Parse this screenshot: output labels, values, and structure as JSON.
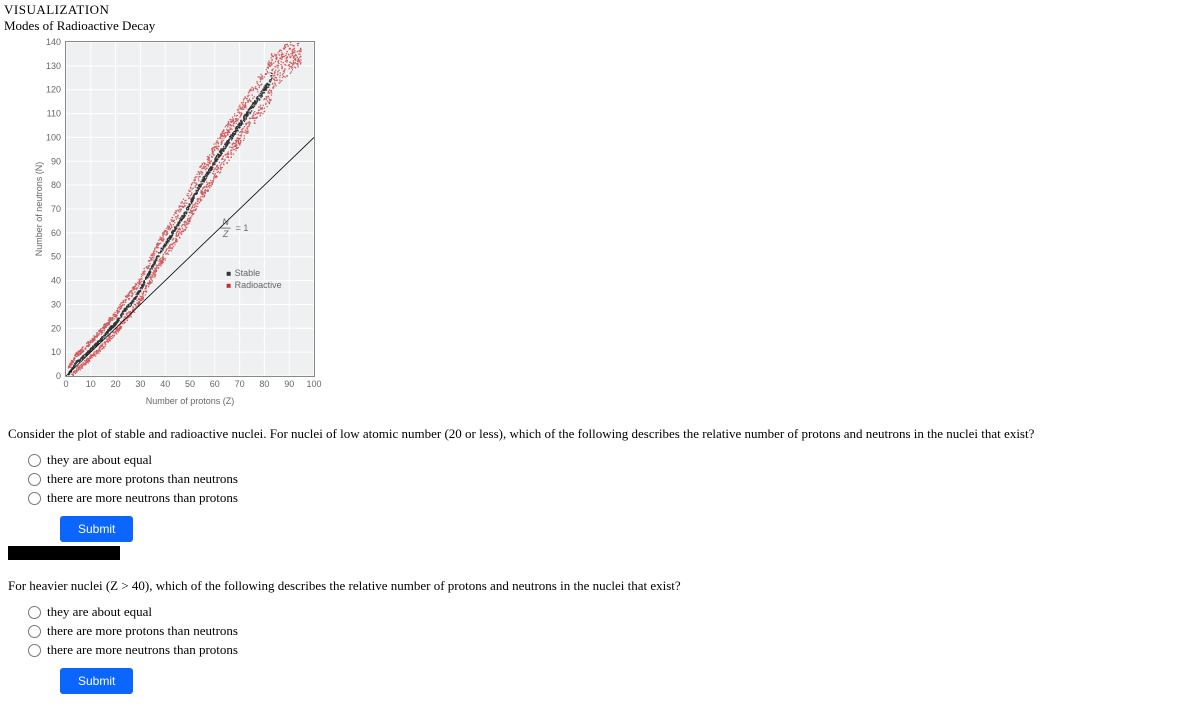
{
  "header": {
    "kicker": "VISUALIZATION",
    "title": "Modes of Radioactive Decay"
  },
  "chart": {
    "type": "scatter",
    "xlabel": "Number of protons (Z)",
    "ylabel": "Number of neutrons (N)",
    "xlim": [
      0,
      100
    ],
    "ylim": [
      0,
      140
    ],
    "xtick_step": 10,
    "ytick_step": 10,
    "background_color": "#ffffff",
    "plot_bg": "#eef0f2",
    "grid_color": "#ffffff",
    "axis_color": "#888888",
    "line_color": "#000000",
    "legend": {
      "stable": "Stable",
      "radioactive": "Radioactive"
    },
    "legend_colors": {
      "stable": "#333333",
      "radioactive": "#c92a2a"
    },
    "nz_label": "= 1",
    "nz_frac_top": "N",
    "nz_frac_bot": "Z",
    "stable_band": [
      [
        1,
        1
      ],
      [
        2,
        2
      ],
      [
        4,
        5.5
      ],
      [
        6,
        7
      ],
      [
        8,
        9
      ],
      [
        10,
        11
      ],
      [
        12,
        13
      ],
      [
        14,
        15
      ],
      [
        16,
        17.5
      ],
      [
        18,
        20
      ],
      [
        20,
        22
      ],
      [
        22,
        25
      ],
      [
        24,
        28
      ],
      [
        26,
        30
      ],
      [
        28,
        33
      ],
      [
        30,
        36
      ],
      [
        32,
        40
      ],
      [
        34,
        44
      ],
      [
        36,
        48
      ],
      [
        38,
        52
      ],
      [
        40,
        55
      ],
      [
        42,
        58
      ],
      [
        44,
        62
      ],
      [
        46,
        65
      ],
      [
        48,
        68
      ],
      [
        50,
        72
      ],
      [
        52,
        76
      ],
      [
        54,
        80
      ],
      [
        56,
        83
      ],
      [
        58,
        86
      ],
      [
        60,
        90
      ],
      [
        62,
        93
      ],
      [
        64,
        96
      ],
      [
        66,
        99
      ],
      [
        68,
        102
      ],
      [
        70,
        105
      ],
      [
        72,
        108
      ],
      [
        74,
        111
      ],
      [
        76,
        114
      ],
      [
        78,
        117
      ],
      [
        80,
        120
      ],
      [
        82,
        123
      ],
      [
        83,
        126
      ]
    ],
    "stable_band_width_n": 3,
    "radio_halo_width_n": 8,
    "marker_size": 1.3
  },
  "q1": {
    "text": "Consider the plot of stable and radioactive nuclei. For nuclei of low atomic number (20 or less), which of the following describes the relative number of protons and neutrons in the nuclei that exist?",
    "opt1": "they are about equal",
    "opt2": "there are more protons than neutrons",
    "opt3": "there are more neutrons than protons",
    "submit": "Submit"
  },
  "q2": {
    "text": "For heavier nuclei (Z > 40), which of the following describes the relative number of protons and neutrons in the nuclei that exist?",
    "opt1": "they are about equal",
    "opt2": "there are more protons than neutrons",
    "opt3": "there are more neutrons than protons",
    "submit": "Submit"
  }
}
